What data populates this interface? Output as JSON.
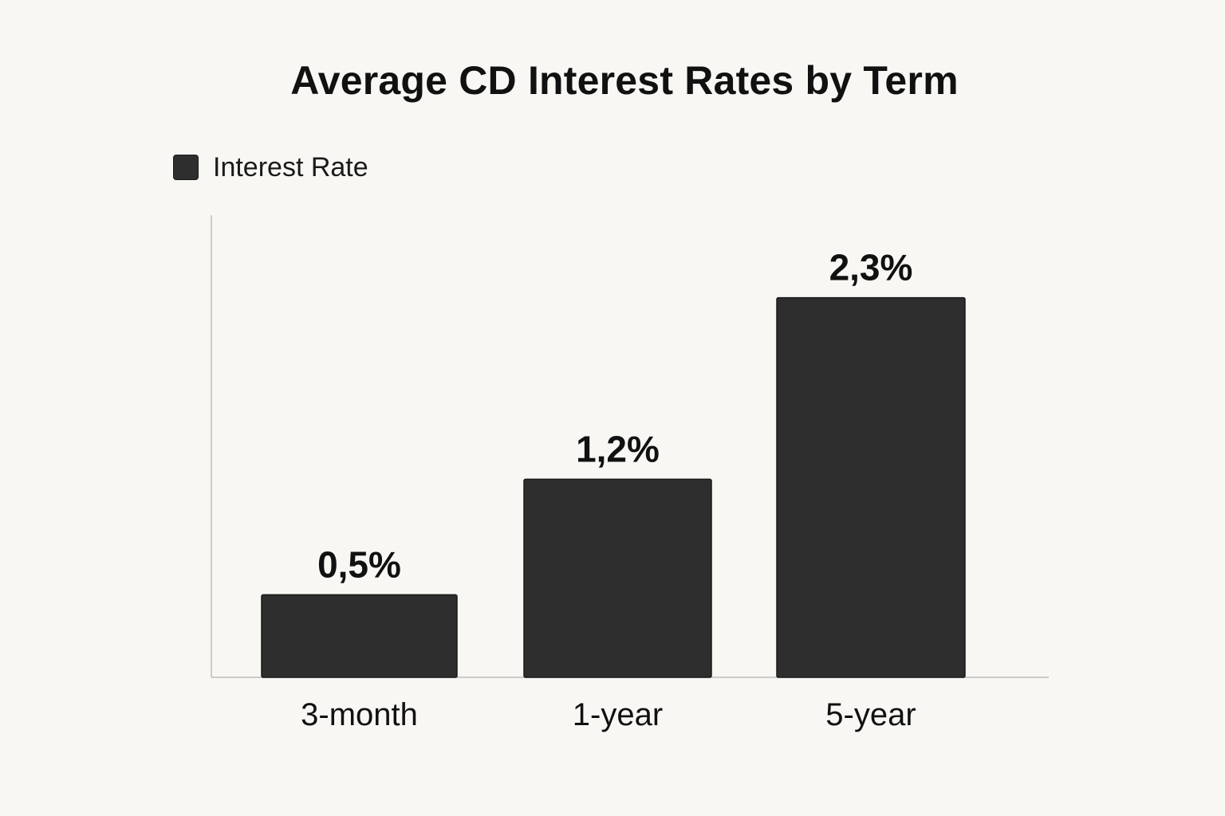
{
  "chart_data": {
    "type": "bar",
    "title": "Average CD Interest Rates by Term",
    "categories": [
      "3-month",
      "1-year",
      "5-year"
    ],
    "series": [
      {
        "name": "Interest Rate",
        "values": [
          0.5,
          1.2,
          2.3
        ],
        "labels": [
          "0,5%",
          "1,2%",
          "2,3%"
        ]
      }
    ],
    "xlabel": "",
    "ylabel": "",
    "ylim": [
      0,
      2.8
    ],
    "grid": false,
    "legend_position": "top-left",
    "colors": {
      "bar": "#2e2e2e",
      "bar_edge": "#1a1a1a",
      "axis": "#bdbdbd",
      "background": "#f8f7f3"
    }
  }
}
